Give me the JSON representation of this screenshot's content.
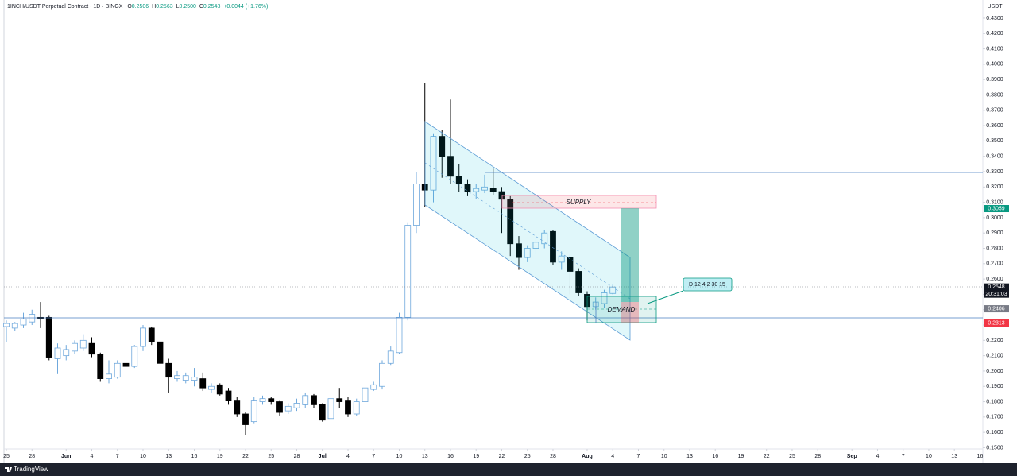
{
  "chart_data": {
    "type": "candlestick",
    "header": {
      "symbol": "1INCH/USDT Perpetual Contract · 1D · BINGX",
      "open_label": "O",
      "open": "0.2506",
      "high_label": "H",
      "high": "0.2563",
      "low_label": "L",
      "low": "0.2500",
      "close_label": "C",
      "close": "0.2548",
      "change": "+0.0044 (+1.76%)"
    },
    "currency": "USDT",
    "footer": "TradingView",
    "countdown": "20:31:03",
    "annotations": {
      "supply": "SUPPLY",
      "demand": "DEMAND",
      "callout": "D 12 4 2 30 15"
    },
    "up_color": "#ffffff",
    "up_border": "#6fa8dc",
    "down_color": "#000000",
    "x": [
      0,
      1,
      2,
      3,
      4,
      5,
      6,
      7,
      8,
      9,
      10,
      11,
      12,
      13,
      14,
      15,
      16,
      17,
      18,
      19,
      20,
      21,
      22,
      23,
      24,
      25,
      26,
      27,
      28,
      29,
      30,
      31,
      32,
      33,
      34,
      35,
      36,
      37,
      38,
      39,
      40,
      41,
      42,
      43,
      44,
      45,
      46,
      47,
      48,
      49,
      50,
      51,
      52,
      53,
      54,
      55,
      56,
      57,
      58,
      59,
      60,
      61,
      62,
      63,
      64,
      65,
      66,
      67,
      68,
      69,
      70,
      71
    ],
    "open": [
      0.229,
      0.228,
      0.23,
      0.232,
      0.235,
      0.235,
      0.208,
      0.21,
      0.213,
      0.215,
      0.218,
      0.211,
      0.195,
      0.196,
      0.205,
      0.203,
      0.216,
      0.228,
      0.219,
      0.205,
      0.195,
      0.194,
      0.194,
      0.195,
      0.188,
      0.191,
      0.187,
      0.181,
      0.172,
      0.167,
      0.18,
      0.182,
      0.18,
      0.174,
      0.176,
      0.178,
      0.184,
      0.178,
      0.169,
      0.182,
      0.181,
      0.172,
      0.18,
      0.188,
      0.19,
      0.205,
      0.212,
      0.235,
      0.295,
      0.322,
      0.318,
      0.353,
      0.34,
      0.327,
      0.322,
      0.317,
      0.318,
      0.319,
      0.317,
      0.312,
      0.283,
      0.274,
      0.28,
      0.283,
      0.291,
      0.271,
      0.274,
      0.265,
      0.25,
      0.242,
      0.244,
      0.2506
    ],
    "high": [
      0.233,
      0.232,
      0.238,
      0.24,
      0.245,
      0.236,
      0.218,
      0.217,
      0.22,
      0.224,
      0.222,
      0.212,
      0.207,
      0.207,
      0.207,
      0.217,
      0.23,
      0.229,
      0.22,
      0.208,
      0.2,
      0.199,
      0.202,
      0.199,
      0.192,
      0.192,
      0.189,
      0.183,
      0.173,
      0.183,
      0.184,
      0.183,
      0.181,
      0.179,
      0.182,
      0.186,
      0.185,
      0.179,
      0.184,
      0.189,
      0.183,
      0.182,
      0.191,
      0.193,
      0.207,
      0.216,
      0.238,
      0.297,
      0.33,
      0.388,
      0.355,
      0.357,
      0.377,
      0.335,
      0.325,
      0.322,
      0.328,
      0.332,
      0.32,
      0.314,
      0.288,
      0.282,
      0.287,
      0.292,
      0.292,
      0.278,
      0.276,
      0.267,
      0.252,
      0.248,
      0.253,
      0.2563
    ],
    "low": [
      0.219,
      0.226,
      0.228,
      0.23,
      0.228,
      0.207,
      0.198,
      0.207,
      0.211,
      0.213,
      0.209,
      0.193,
      0.192,
      0.195,
      0.201,
      0.202,
      0.213,
      0.217,
      0.2,
      0.186,
      0.193,
      0.192,
      0.19,
      0.187,
      0.186,
      0.184,
      0.178,
      0.17,
      0.158,
      0.166,
      0.178,
      0.178,
      0.171,
      0.172,
      0.174,
      0.176,
      0.176,
      0.167,
      0.167,
      0.176,
      0.17,
      0.171,
      0.179,
      0.187,
      0.188,
      0.204,
      0.211,
      0.233,
      0.29,
      0.307,
      0.31,
      0.326,
      0.322,
      0.317,
      0.314,
      0.312,
      0.316,
      0.315,
      0.29,
      0.275,
      0.266,
      0.271,
      0.276,
      0.28,
      0.269,
      0.266,
      0.25,
      0.249,
      0.233,
      0.24,
      0.241,
      0.25
    ],
    "close": [
      0.231,
      0.231,
      0.234,
      0.237,
      0.234,
      0.209,
      0.215,
      0.214,
      0.218,
      0.22,
      0.211,
      0.195,
      0.198,
      0.205,
      0.203,
      0.216,
      0.228,
      0.219,
      0.205,
      0.196,
      0.197,
      0.197,
      0.196,
      0.189,
      0.19,
      0.185,
      0.181,
      0.172,
      0.165,
      0.181,
      0.182,
      0.18,
      0.173,
      0.177,
      0.179,
      0.184,
      0.178,
      0.168,
      0.182,
      0.18,
      0.172,
      0.18,
      0.189,
      0.191,
      0.205,
      0.213,
      0.235,
      0.295,
      0.322,
      0.318,
      0.353,
      0.34,
      0.327,
      0.322,
      0.317,
      0.319,
      0.32,
      0.317,
      0.312,
      0.283,
      0.274,
      0.28,
      0.284,
      0.29,
      0.271,
      0.275,
      0.265,
      0.251,
      0.242,
      0.245,
      0.251,
      0.2548
    ],
    "xlim": [
      -0.28,
      114.33
    ],
    "ylim": [
      0.1492,
      0.4419
    ],
    "xticks": [
      {
        "value": 0,
        "label": "25"
      },
      {
        "value": 3,
        "label": "28"
      },
      {
        "value": 7,
        "label": "Jun"
      },
      {
        "value": 10,
        "label": "4"
      },
      {
        "value": 13,
        "label": "7"
      },
      {
        "value": 16,
        "label": "10"
      },
      {
        "value": 19,
        "label": "13"
      },
      {
        "value": 22,
        "label": "16"
      },
      {
        "value": 25,
        "label": "19"
      },
      {
        "value": 28,
        "label": "22"
      },
      {
        "value": 31,
        "label": "25"
      },
      {
        "value": 34,
        "label": "28"
      },
      {
        "value": 37,
        "label": "Jul"
      },
      {
        "value": 40,
        "label": "4"
      },
      {
        "value": 43,
        "label": "7"
      },
      {
        "value": 46,
        "label": "10"
      },
      {
        "value": 49,
        "label": "13"
      },
      {
        "value": 52,
        "label": "16"
      },
      {
        "value": 55,
        "label": "19"
      },
      {
        "value": 58,
        "label": "22"
      },
      {
        "value": 61,
        "label": "25"
      },
      {
        "value": 64,
        "label": "28"
      },
      {
        "value": 68,
        "label": "Aug"
      },
      {
        "value": 71,
        "label": "4"
      },
      {
        "value": 74,
        "label": "7"
      },
      {
        "value": 77,
        "label": "10"
      },
      {
        "value": 80,
        "label": "13"
      },
      {
        "value": 83,
        "label": "16"
      },
      {
        "value": 86,
        "label": "19"
      },
      {
        "value": 89,
        "label": "22"
      },
      {
        "value": 92,
        "label": "25"
      },
      {
        "value": 95,
        "label": "28"
      },
      {
        "value": 99,
        "label": "Sep"
      },
      {
        "value": 102,
        "label": "4"
      },
      {
        "value": 105,
        "label": "7"
      },
      {
        "value": 108,
        "label": "10"
      },
      {
        "value": 111,
        "label": "13"
      },
      {
        "value": 114,
        "label": "16"
      }
    ],
    "yticks": [
      {
        "value": 0.15,
        "label": "0.1500"
      },
      {
        "value": 0.16,
        "label": "0.1600"
      },
      {
        "value": 0.17,
        "label": "0.1700"
      },
      {
        "value": 0.18,
        "label": "0.1800"
      },
      {
        "value": 0.19,
        "label": "0.1900"
      },
      {
        "value": 0.2,
        "label": "0.2000"
      },
      {
        "value": 0.21,
        "label": "0.2100"
      },
      {
        "value": 0.22,
        "label": "0.2200"
      },
      {
        "value": 0.23,
        "label": "0.2300"
      },
      {
        "value": 0.24,
        "label": "0.2400"
      },
      {
        "value": 0.25,
        "label": "0.2500"
      },
      {
        "value": 0.26,
        "label": "0.2600"
      },
      {
        "value": 0.27,
        "label": "0.2700"
      },
      {
        "value": 0.28,
        "label": "0.2800"
      },
      {
        "value": 0.29,
        "label": "0.2900"
      },
      {
        "value": 0.3,
        "label": "0.3000"
      },
      {
        "value": 0.31,
        "label": "0.3100"
      },
      {
        "value": 0.32,
        "label": "0.3200"
      },
      {
        "value": 0.33,
        "label": "0.3300"
      },
      {
        "value": 0.34,
        "label": "0.3400"
      },
      {
        "value": 0.35,
        "label": "0.3500"
      },
      {
        "value": 0.36,
        "label": "0.3600"
      },
      {
        "value": 0.37,
        "label": "0.3700"
      },
      {
        "value": 0.38,
        "label": "0.3800"
      },
      {
        "value": 0.39,
        "label": "0.3900"
      },
      {
        "value": 0.4,
        "label": "0.4000"
      },
      {
        "value": 0.41,
        "label": "0.4100"
      },
      {
        "value": 0.42,
        "label": "0.4200"
      },
      {
        "value": 0.43,
        "label": "0.4300"
      }
    ],
    "price_markers": [
      {
        "value": 0.3059,
        "color": "#089981"
      },
      {
        "value": 0.2548,
        "color": "#131722"
      },
      {
        "value": 0.2406,
        "color": "#787b86"
      },
      {
        "value": 0.2313,
        "color": "#f23645"
      }
    ],
    "grid": false
  }
}
